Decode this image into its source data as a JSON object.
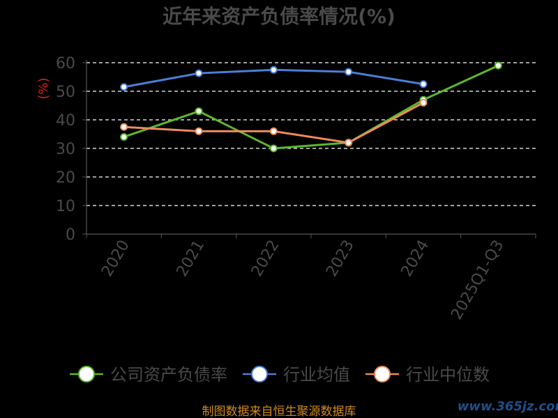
{
  "chart_data": {
    "type": "line",
    "title": "近年来资产负债率情况(%)",
    "ylabel": "(%)",
    "xlabel": "",
    "categories": [
      "2020",
      "2021",
      "2022",
      "2023",
      "2024",
      "2025Q1-Q3"
    ],
    "ylim": [
      0,
      60
    ],
    "yticks": [
      0,
      10,
      20,
      30,
      40,
      50,
      60
    ],
    "grid": true,
    "legend_position": "bottom",
    "series": [
      {
        "name": "公司资产负债率",
        "color": "#5cb82e",
        "values": [
          34,
          43,
          30,
          32,
          47,
          59
        ]
      },
      {
        "name": "行业均值",
        "color": "#4a7fd8",
        "values": [
          51.5,
          56.3,
          57.5,
          56.8,
          52.5,
          null
        ]
      },
      {
        "name": "行业中位数",
        "color": "#f08b5a",
        "values": [
          37.5,
          36,
          36,
          32,
          46,
          null
        ]
      }
    ]
  },
  "footer": {
    "source": "制图数据来自恒生聚源数据库",
    "watermark": "www.365jz.com"
  }
}
